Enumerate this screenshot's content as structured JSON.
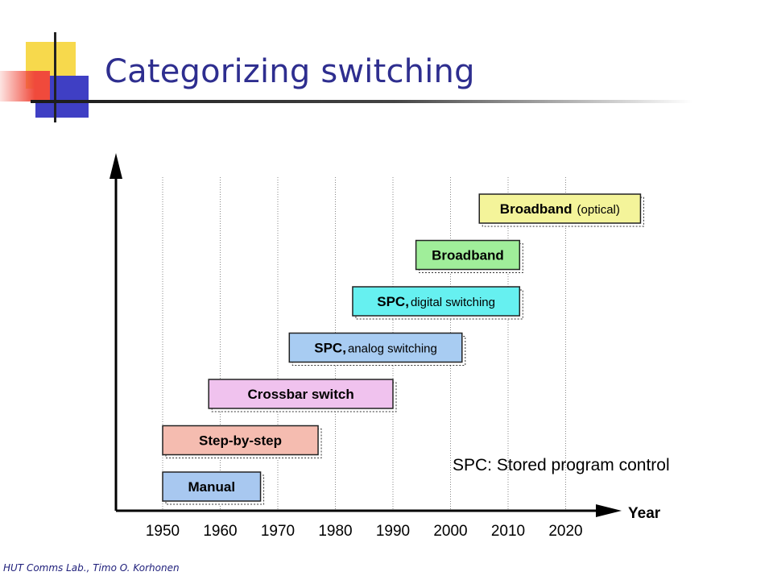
{
  "slide": {
    "title": "Categorizing switching",
    "note": "SPC: Stored program control",
    "footer": "HUT Comms Lab., Timo O. Korhonen"
  },
  "colors": {
    "title": "#2e2e8f",
    "logo_yellow": "#f7d94c",
    "logo_red": "#f04a3c",
    "logo_blue": "#3f3fc4"
  },
  "chart_data": {
    "type": "timeline",
    "xlabel": "Year",
    "x_ticks": [
      "1950",
      "1960",
      "1970",
      "1980",
      "1990",
      "2000",
      "2010",
      "2020"
    ],
    "xlim": [
      1942,
      2027
    ],
    "grid": true,
    "items": [
      {
        "bold": "Manual",
        "rest": "",
        "start": 1950,
        "end": 1967,
        "color": "#a8c8f0"
      },
      {
        "bold": "Step-by-step",
        "rest": "",
        "start": 1950,
        "end": 1977,
        "color": "#f5bcb0"
      },
      {
        "bold": "Crossbar switch",
        "rest": "",
        "start": 1958,
        "end": 1990,
        "color": "#f0c2ee"
      },
      {
        "bold": "SPC,",
        "rest": "analog switching",
        "start": 1972,
        "end": 2002,
        "color": "#a8ccf2"
      },
      {
        "bold": "SPC,",
        "rest": "digital switching",
        "start": 1983,
        "end": 2012,
        "color": "#66f0f0"
      },
      {
        "bold": "Broadband",
        "rest": "",
        "start": 1994,
        "end": 2012,
        "color": "#a0ee9a"
      },
      {
        "bold": "Broadband",
        "rest": "(optical)",
        "start": 2005,
        "end": 2033,
        "color": "#f4f49a"
      }
    ]
  }
}
